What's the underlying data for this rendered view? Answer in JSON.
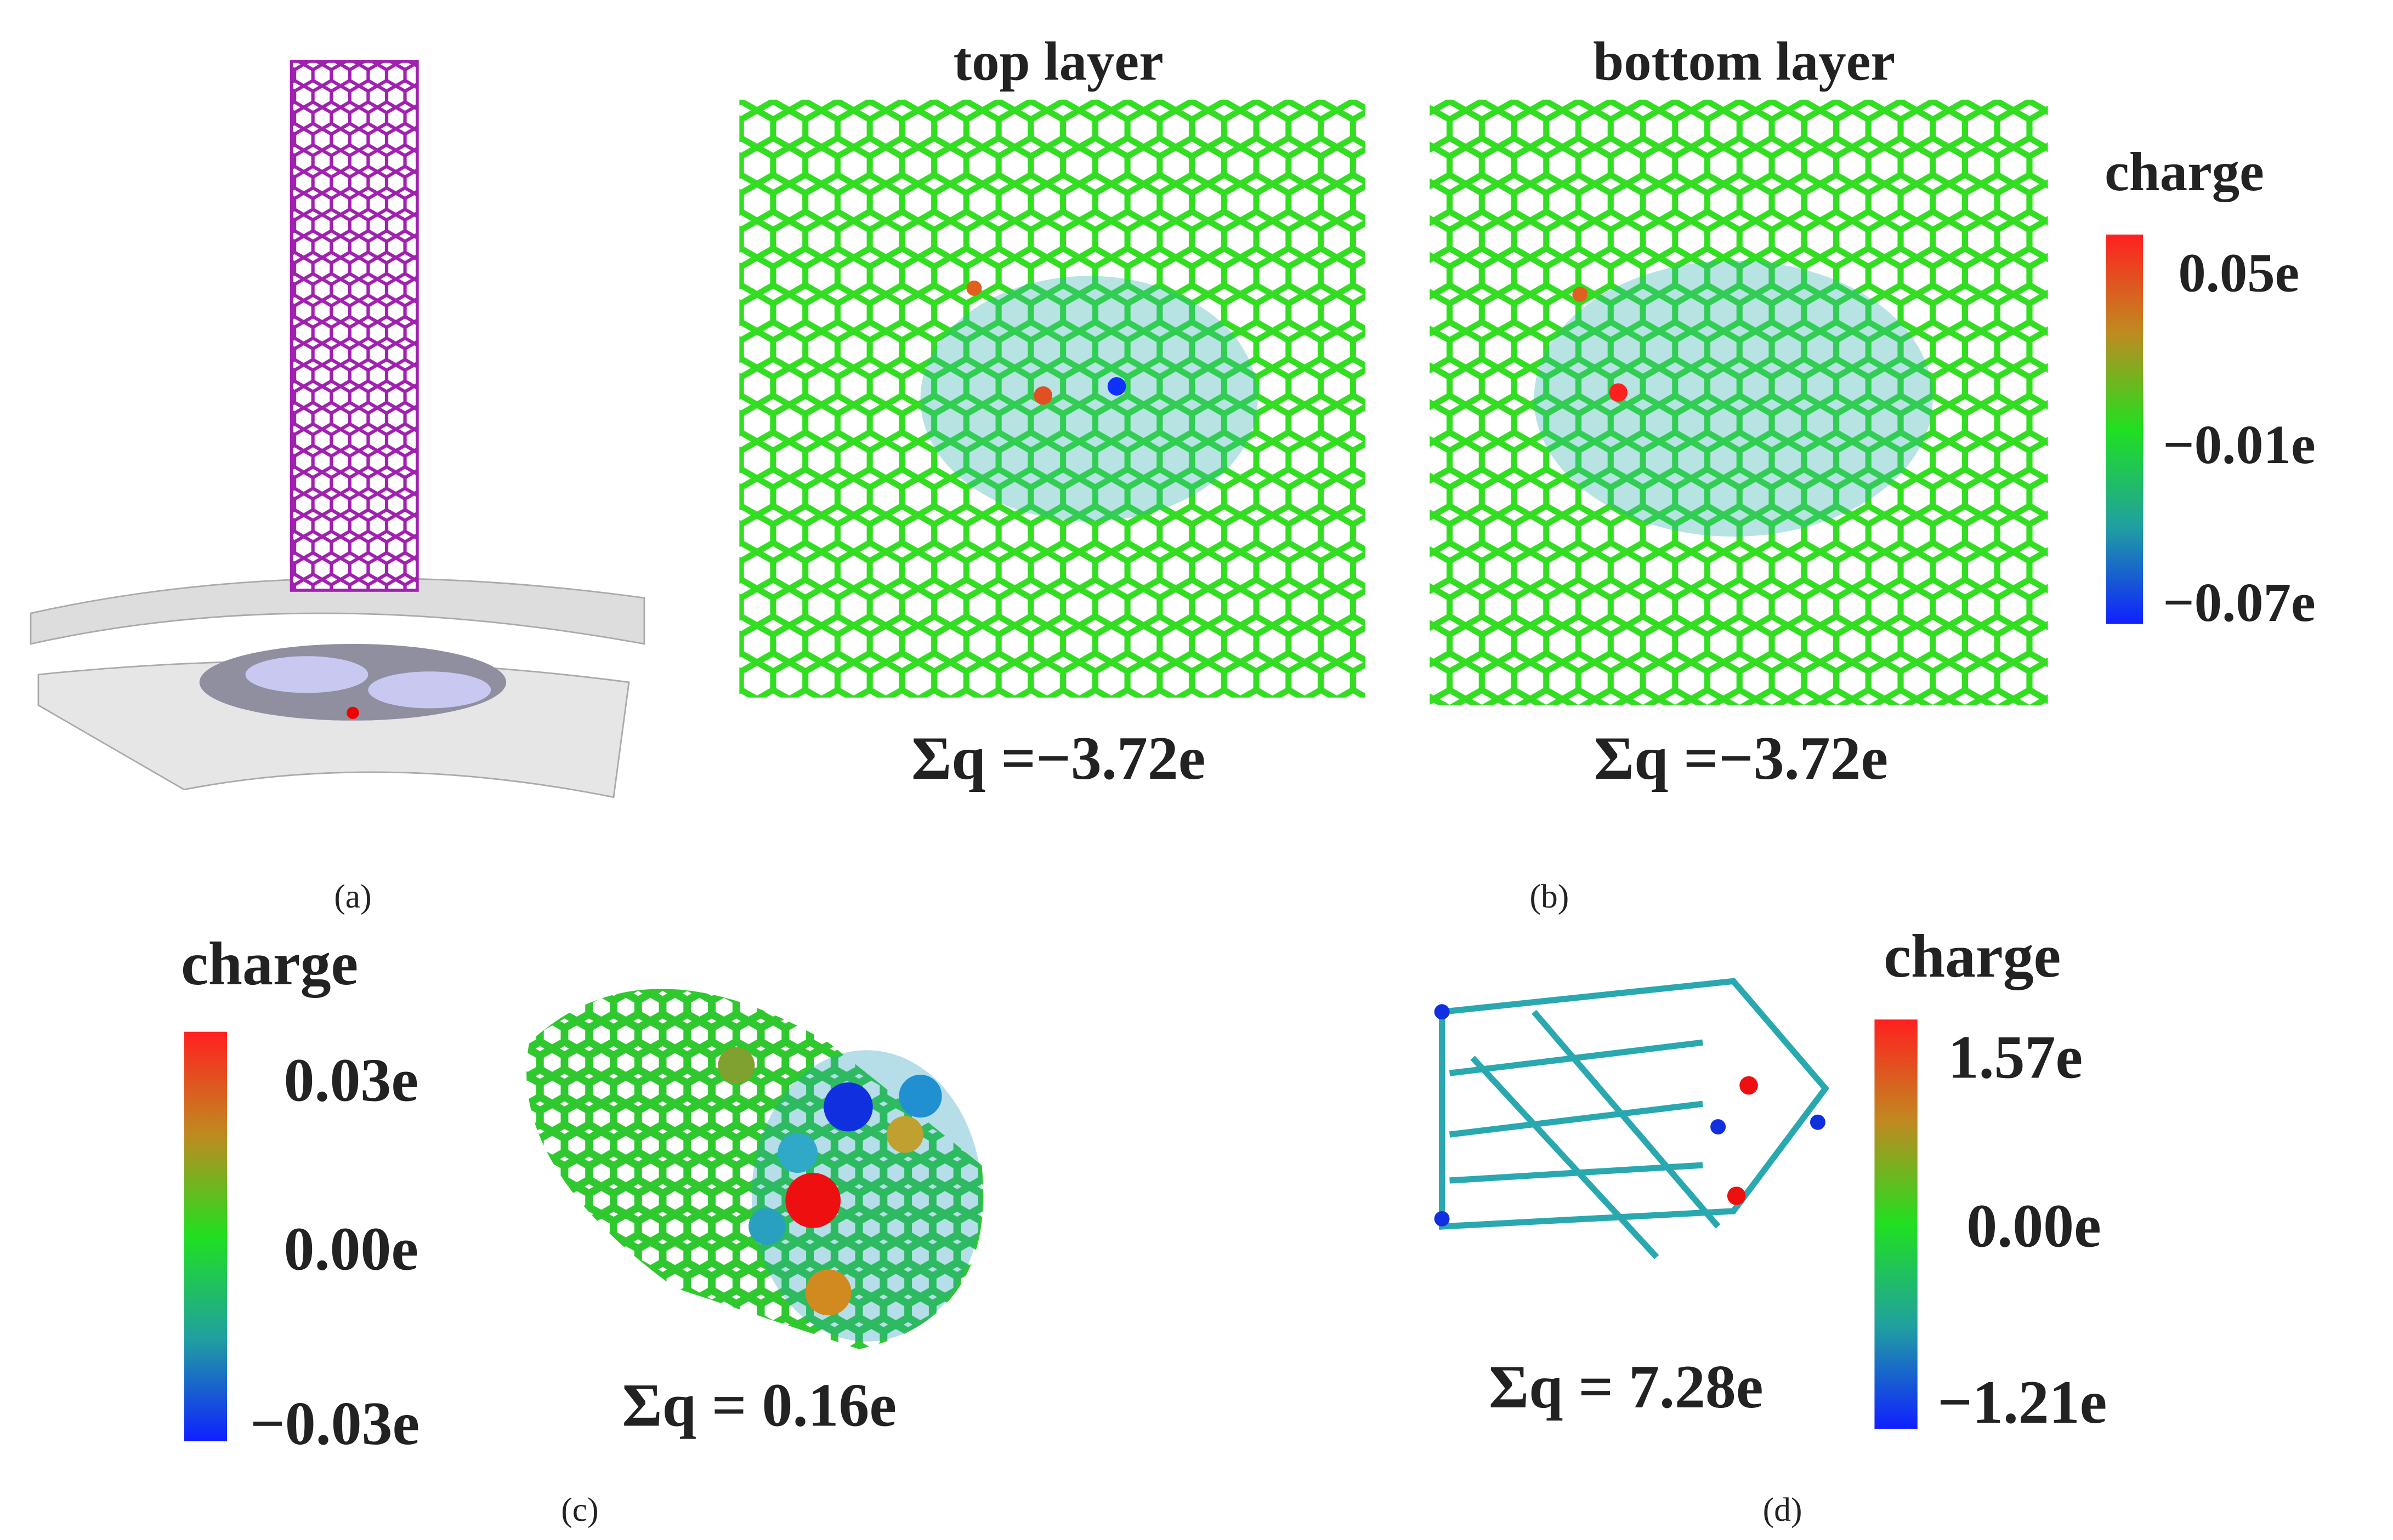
{
  "panel_a": {
    "label": "(a)"
  },
  "panel_b": {
    "label": "(b)",
    "top_title": "top layer",
    "bottom_title": "bottom layer",
    "top_sum": "Σq =−3.72e",
    "bottom_sum": "Σq =−3.72e",
    "colorbar": {
      "title": "charge",
      "ticks": [
        "0.05e",
        "−0.01e",
        "−0.07e"
      ]
    }
  },
  "panel_c": {
    "label": "(c)",
    "sum": "Σq = 0.16e",
    "colorbar": {
      "title": "charge",
      "ticks": [
        "0.03e",
        "0.00e",
        "−0.03e"
      ]
    }
  },
  "panel_d": {
    "label": "(d)",
    "sum": "Σq = 7.28e",
    "colorbar": {
      "title": "charge",
      "ticks": [
        "1.57e",
        "0.00e",
        "−1.21e"
      ]
    }
  }
}
